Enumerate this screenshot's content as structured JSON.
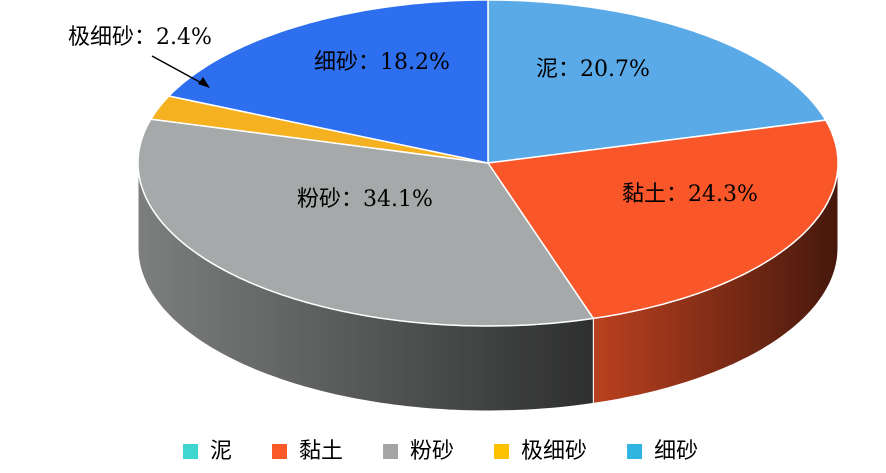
{
  "chart_data": {
    "type": "pie3d",
    "categories": [
      "泥",
      "黏土",
      "粉砂",
      "极细砂",
      "细砂"
    ],
    "values": [
      20.7,
      24.3,
      34.1,
      2.4,
      18.2
    ],
    "value_labels": [
      "泥：20.7%",
      "黏土：24.3%",
      "粉砂：34.1%",
      "极细砂：2.4%",
      "细砂：18.2%"
    ],
    "colors": [
      "#5aaae8",
      "#f9572a",
      "#a6a9a9",
      "#f5b120",
      "#2e6ff0"
    ],
    "legend_colors": [
      "#3fd6d0",
      "#f95a28",
      "#a5a5a5",
      "#ffc000",
      "#2fb5e0"
    ]
  }
}
